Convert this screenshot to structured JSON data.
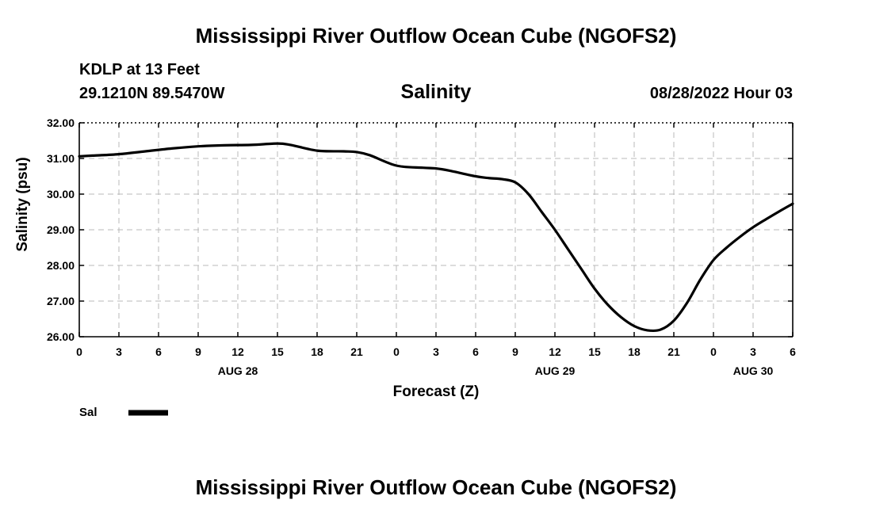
{
  "chart_data": {
    "type": "line",
    "title": "Mississippi River Outflow Ocean Cube (NGOFS2)",
    "footer_title": "Mississippi River Outflow Ocean Cube (NGOFS2)",
    "station": "KDLP at 13 Feet",
    "coordinates": "29.1210N  89.5470W",
    "subtitle": "Salinity",
    "datetime": "08/28/2022 Hour 03",
    "xlabel": "Forecast (Z)",
    "ylabel": "Salinity (psu)",
    "ylim": [
      26,
      32
    ],
    "yticks": [
      "26.00",
      "27.00",
      "28.00",
      "29.00",
      "30.00",
      "31.00",
      "32.00"
    ],
    "xlim": [
      0,
      54
    ],
    "xticks": [
      "0",
      "3",
      "6",
      "9",
      "12",
      "15",
      "18",
      "21",
      "0",
      "3",
      "6",
      "9",
      "12",
      "15",
      "18",
      "21",
      "0",
      "3",
      "6"
    ],
    "day_labels": [
      {
        "label": "AUG 28",
        "hour": 12
      },
      {
        "label": "AUG 29",
        "hour": 36
      },
      {
        "label": "AUG 30",
        "hour": 51
      }
    ],
    "grid": true,
    "legend_position": "bottom-left",
    "series": [
      {
        "name": "Sal",
        "color": "#000000",
        "x": [
          0,
          1,
          3,
          5,
          7,
          9,
          11,
          13,
          15,
          16,
          18,
          20,
          21,
          22,
          24,
          26,
          27,
          28,
          30,
          31,
          32,
          33,
          34,
          35,
          36,
          37,
          38,
          39,
          40,
          41,
          42,
          43,
          44,
          45,
          46,
          47,
          48,
          49,
          50,
          51,
          52,
          53,
          54
        ],
        "values": [
          31.06,
          31.08,
          31.12,
          31.2,
          31.28,
          31.34,
          31.37,
          31.38,
          31.42,
          31.38,
          31.22,
          31.2,
          31.18,
          31.09,
          30.8,
          30.74,
          30.72,
          30.66,
          30.5,
          30.45,
          30.42,
          30.33,
          30.0,
          29.5,
          29.0,
          28.45,
          27.9,
          27.35,
          26.9,
          26.55,
          26.3,
          26.18,
          26.2,
          26.45,
          26.95,
          27.6,
          28.15,
          28.5,
          28.8,
          29.07,
          29.3,
          29.52,
          29.73
        ]
      }
    ]
  }
}
